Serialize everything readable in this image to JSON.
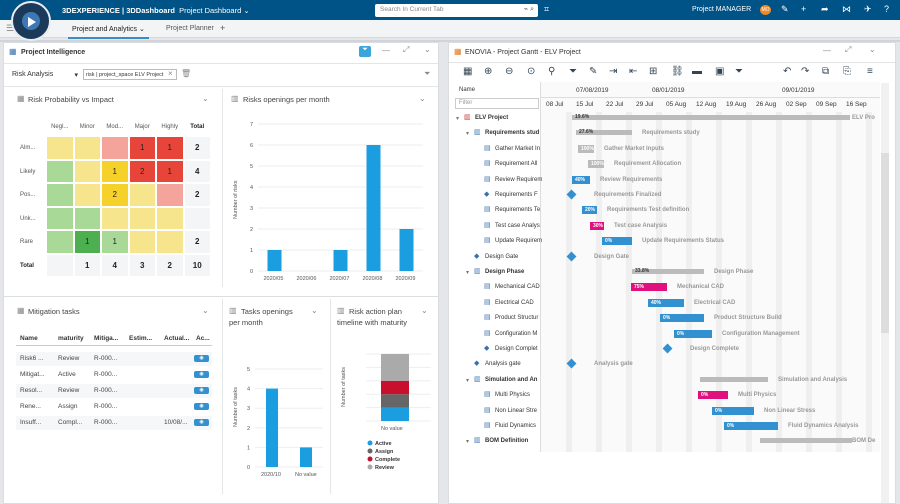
{
  "app": {
    "brand": "3DEXPERIENCE | 3DDashboard",
    "dashboard": "Project Dashboard",
    "search_placeholder": "Search In Current Tab",
    "role": "Project MANAGER",
    "avatar": "MO",
    "tabs": [
      "Project and Analytics",
      "Project Planner"
    ],
    "add": "+"
  },
  "intel": {
    "title": "Project Intelligence",
    "dropdown": "Risk Analysis",
    "filter_chip": "risk | project_space  ELV Project",
    "close": "×"
  },
  "matrix": {
    "title": "Risk Probability vs Impact",
    "cols": [
      "Negl...",
      "Minor",
      "Mod...",
      "Major",
      "Highly",
      "Total"
    ],
    "rows": [
      "Alm...",
      "Likely",
      "Pos...",
      "Unk...",
      "Rare",
      "Total"
    ],
    "cells": [
      [
        "",
        "",
        "",
        "1",
        "1",
        "2"
      ],
      [
        "",
        "",
        "1",
        "2",
        "1",
        "4"
      ],
      [
        "",
        "",
        "2",
        "",
        "",
        "2"
      ],
      [
        "",
        "",
        "",
        "",
        "",
        ""
      ],
      [
        "",
        "1",
        "1",
        "",
        "",
        "2"
      ],
      [
        "",
        "1",
        "4",
        "3",
        "2",
        "10"
      ]
    ],
    "colors": [
      [
        "#f7e58e",
        "#f7e58e",
        "#f4a49a",
        "#e8453a",
        "#e8453a"
      ],
      [
        "#a9d996",
        "#f7e58e",
        "#f5d12a",
        "#e8453a",
        "#e8453a"
      ],
      [
        "#a9d996",
        "#f7e58e",
        "#f5d12a",
        "#f7e58e",
        "#f4a49a"
      ],
      [
        "#a9d996",
        "#a9d996",
        "#f7e58e",
        "#f7e58e",
        "#f7e58e"
      ],
      [
        "#a9d996",
        "#4caf50",
        "#a9d996",
        "#f7e58e",
        "#f7e58e"
      ]
    ]
  },
  "risks_chart": {
    "title": "Risks openings per month",
    "ylabel": "Number of risks",
    "yticks": [
      "7",
      "6",
      "5",
      "4",
      "3",
      "2",
      "1",
      "0"
    ]
  },
  "chart_data": [
    {
      "type": "bar",
      "title": "Risks openings per month",
      "ylabel": "Number of risks",
      "categories": [
        "2020/05",
        "2020/06",
        "2020/07",
        "2020/08",
        "2020/09"
      ],
      "values": [
        1,
        0,
        1,
        6,
        2
      ],
      "ylim": [
        0,
        7
      ]
    },
    {
      "type": "bar",
      "title": "Tasks openings per month",
      "ylabel": "Number of tasks",
      "categories": [
        "2020/10",
        "No value"
      ],
      "values": [
        4,
        1
      ],
      "ylim": [
        0,
        5
      ]
    },
    {
      "type": "bar",
      "title": "Risk action plan timeline with maturity",
      "ylabel": "Number of tasks",
      "categories": [
        "No value"
      ],
      "series": [
        {
          "name": "Active",
          "values": [
            1
          ]
        },
        {
          "name": "Assign",
          "values": [
            1
          ]
        },
        {
          "name": "Complete",
          "values": [
            1
          ]
        },
        {
          "name": "Review",
          "values": [
            2
          ]
        }
      ],
      "ylim": [
        0,
        5
      ]
    }
  ],
  "mitigation": {
    "title": "Mitigation tasks",
    "headers": [
      "Name",
      "maturity",
      "Mitiga...",
      "Estim...",
      "Actual...",
      "Ac..."
    ],
    "rows": [
      [
        "Risk6 ...",
        "Review",
        "R-000...",
        "",
        "",
        ""
      ],
      [
        "Mitigat...",
        "Active",
        "R-000...",
        "",
        "",
        ""
      ],
      [
        "Resol...",
        "Review",
        "R-000...",
        "",
        "",
        ""
      ],
      [
        "Rene...",
        "Assign",
        "R-000...",
        "",
        "",
        ""
      ],
      [
        "Insuff...",
        "Compl...",
        "R-000...",
        "",
        "10/08/...",
        ""
      ]
    ]
  },
  "tasks_chart": {
    "title1": "Tasks openings",
    "title2": "per month",
    "ylabel": "Number of tasks",
    "yticks": [
      "5",
      "4",
      "3",
      "2",
      "1",
      "0"
    ]
  },
  "action_chart": {
    "title1": "Risk action plan",
    "title2": "timeline with maturity",
    "ylabel": "Number of tasks",
    "xlabel": "No value",
    "legend": [
      {
        "name": "Active",
        "color": "#1a9ee0"
      },
      {
        "name": "Assign",
        "color": "#666666"
      },
      {
        "name": "Complete",
        "color": "#c8102e"
      },
      {
        "name": "Review",
        "color": "#aaaaaa"
      }
    ]
  },
  "gantt": {
    "title": "ENOVIA - Project Gantt - ELV Project",
    "filter": "Filter",
    "name_header": "Name",
    "months": [
      "07/08/2019",
      "08/01/2019",
      "09/01/2019"
    ],
    "days": [
      "08 Jul",
      "15 Jul",
      "22 Jul",
      "29 Jul",
      "05 Aug",
      "12 Aug",
      "19 Aug",
      "26 Aug",
      "02 Sep",
      "09 Sep",
      "16 Sep"
    ],
    "rows": [
      {
        "name": "ELV Project",
        "lvl": 0,
        "kind": "proj",
        "label": "ELV Pro",
        "pct": "19.6%",
        "bx": 572,
        "bw": 278,
        "color": "#bbb"
      },
      {
        "name": "Requirements stud",
        "lvl": 1,
        "kind": "sum",
        "label": "Requirements study",
        "pct": "27.6%",
        "bx": 576,
        "bw": 56,
        "color": "#bbb"
      },
      {
        "name": "Gather Market In",
        "lvl": 2,
        "kind": "task",
        "label": "Gather Market Inputs",
        "pct": "100%",
        "bx": 578,
        "bw": 16,
        "color": "#bbb"
      },
      {
        "name": "Requirement All",
        "lvl": 2,
        "kind": "task",
        "label": "Requirement Allocation",
        "pct": "100%",
        "bx": 588,
        "bw": 16,
        "color": "#bbb"
      },
      {
        "name": "Review Requirem",
        "lvl": 2,
        "kind": "task",
        "label": "Review Requirements",
        "pct": "40%",
        "bx": 572,
        "bw": 18,
        "color": "#3391d1"
      },
      {
        "name": "Requirements F",
        "lvl": 2,
        "kind": "mile",
        "label": "Requirements Finalized",
        "pct": "",
        "bx": 572,
        "bw": 0,
        "color": "#3391d1"
      },
      {
        "name": "Requirements Te",
        "lvl": 2,
        "kind": "task",
        "label": "Requirements Test definition",
        "pct": "20%",
        "bx": 582,
        "bw": 15,
        "color": "#3391d1"
      },
      {
        "name": "Test case Analys",
        "lvl": 2,
        "kind": "task",
        "label": "Test case Analysis",
        "pct": "30%",
        "bx": 590,
        "bw": 14,
        "color": "#e0117f"
      },
      {
        "name": "Update Requirem",
        "lvl": 2,
        "kind": "task",
        "label": "Update Requirements Status",
        "pct": "0%",
        "bx": 602,
        "bw": 30,
        "color": "#3391d1"
      },
      {
        "name": "Design Gate",
        "lvl": 1,
        "kind": "mile",
        "label": "Design Gate",
        "pct": "",
        "bx": 572,
        "bw": 0,
        "color": "#3391d1"
      },
      {
        "name": "Design Phase",
        "lvl": 1,
        "kind": "sum",
        "label": "Design Phase",
        "pct": "33.8%",
        "bx": 632,
        "bw": 72,
        "color": "#bbb"
      },
      {
        "name": "Mechanical CAD",
        "lvl": 2,
        "kind": "task",
        "label": "Mechanical CAD",
        "pct": "75%",
        "bx": 631,
        "bw": 36,
        "color": "#e0117f"
      },
      {
        "name": "Electrical CAD",
        "lvl": 2,
        "kind": "task",
        "label": "Electrical CAD",
        "pct": "40%",
        "bx": 648,
        "bw": 36,
        "color": "#3391d1"
      },
      {
        "name": "Product Structur",
        "lvl": 2,
        "kind": "task",
        "label": "Product Structure Build",
        "pct": "0%",
        "bx": 660,
        "bw": 44,
        "color": "#3391d1"
      },
      {
        "name": "Configuration M",
        "lvl": 2,
        "kind": "task",
        "label": "Configuration Management",
        "pct": "0%",
        "bx": 674,
        "bw": 38,
        "color": "#3391d1"
      },
      {
        "name": "Design Complet",
        "lvl": 2,
        "kind": "mile",
        "label": "Design Complete",
        "pct": "",
        "bx": 668,
        "bw": 0,
        "color": "#3391d1"
      },
      {
        "name": "Analysis gate",
        "lvl": 1,
        "kind": "mile",
        "label": "Analysis gate",
        "pct": "",
        "bx": 572,
        "bw": 0,
        "color": "#3391d1"
      },
      {
        "name": "Simulation and An",
        "lvl": 1,
        "kind": "sum",
        "label": "Simulation and Analysis",
        "pct": "",
        "bx": 700,
        "bw": 68,
        "color": "#bbb"
      },
      {
        "name": "Multi Physics",
        "lvl": 2,
        "kind": "task",
        "label": "Multi Physics",
        "pct": "0%",
        "bx": 698,
        "bw": 30,
        "color": "#e0117f"
      },
      {
        "name": "Non Linear Stre",
        "lvl": 2,
        "kind": "task",
        "label": "Non Linear Stress",
        "pct": "0%",
        "bx": 712,
        "bw": 42,
        "color": "#3391d1"
      },
      {
        "name": "Fluid Dynamics",
        "lvl": 2,
        "kind": "task",
        "label": "Fluid Dynamics Analysis",
        "pct": "0%",
        "bx": 724,
        "bw": 54,
        "color": "#3391d1"
      },
      {
        "name": "BOM Definition",
        "lvl": 1,
        "kind": "sum",
        "label": "BOM De",
        "pct": "",
        "bx": 760,
        "bw": 92,
        "color": "#bbb"
      }
    ]
  }
}
